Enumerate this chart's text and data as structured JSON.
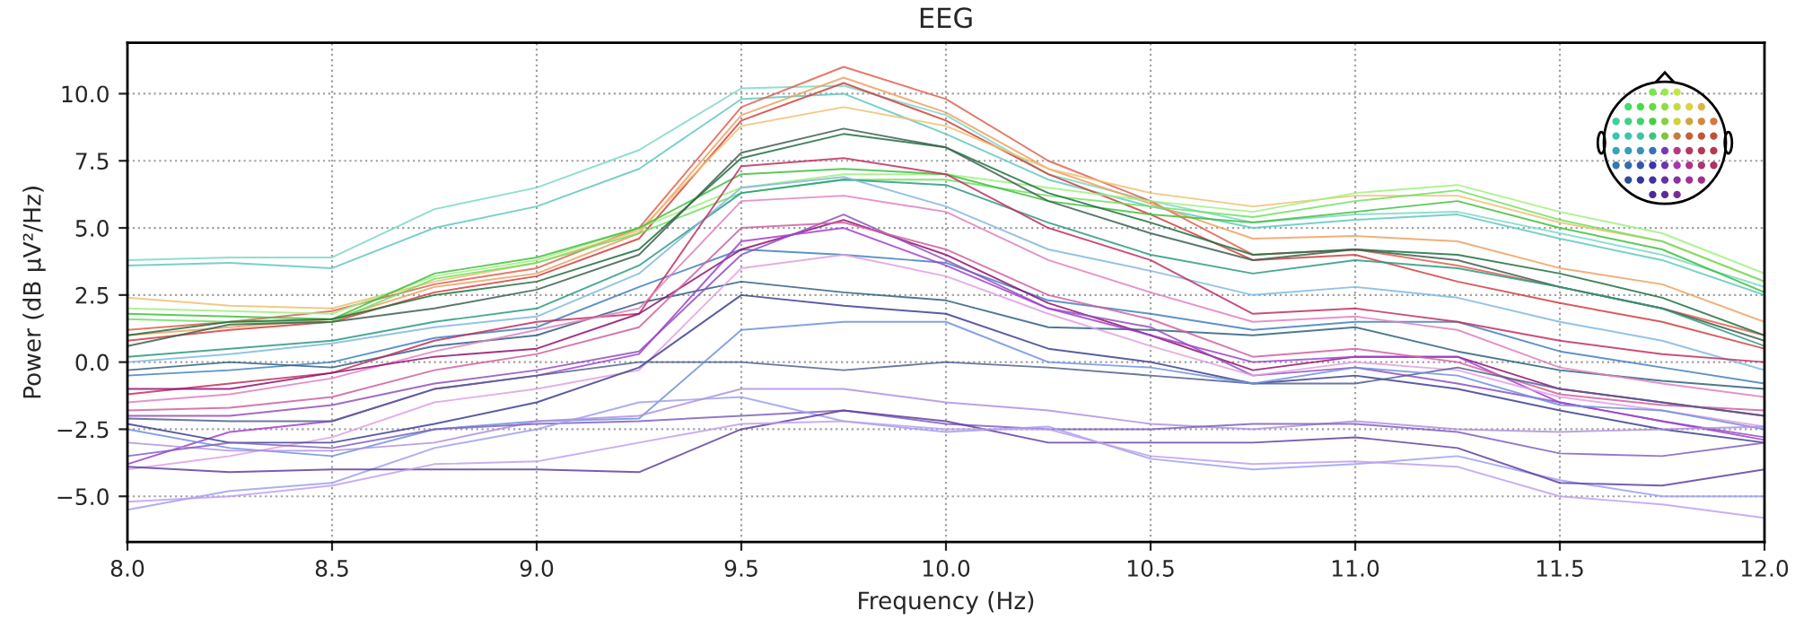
{
  "chart_data": {
    "type": "line",
    "title": "EEG",
    "xlabel": "Frequency (Hz)",
    "ylabel": "Power (dB µV²/Hz)",
    "x": [
      8.0,
      8.25,
      8.5,
      8.75,
      9.0,
      9.25,
      9.5,
      9.75,
      10.0,
      10.25,
      10.5,
      10.75,
      11.0,
      11.25,
      11.5,
      11.75,
      12.0
    ],
    "xlim": [
      8.0,
      12.0
    ],
    "ylim": [
      -6.7,
      11.9
    ],
    "xticks": [
      {
        "value": 8,
        "label": "8.0"
      },
      {
        "value": 8.5,
        "label": "8.5"
      },
      {
        "value": 9,
        "label": "9.0"
      },
      {
        "value": 9.5,
        "label": "9.5"
      },
      {
        "value": 10,
        "label": "10.0"
      },
      {
        "value": 10.5,
        "label": "10.5"
      },
      {
        "value": 11,
        "label": "11.0"
      },
      {
        "value": 11.5,
        "label": "11.5"
      },
      {
        "value": 12,
        "label": "12.0"
      }
    ],
    "yticks": [
      {
        "value": -5,
        "label": "−5.0"
      },
      {
        "value": -2.5,
        "label": "−2.5"
      },
      {
        "value": 0,
        "label": "0.0"
      },
      {
        "value": 2.5,
        "label": "2.5"
      },
      {
        "value": 5,
        "label": "5.0"
      },
      {
        "value": 7.5,
        "label": "7.5"
      },
      {
        "value": 10,
        "label": "10.0"
      }
    ],
    "grid": true,
    "marker": "none",
    "line_style": "solid",
    "series": [
      {
        "color": "#7dd8c8",
        "values": [
          3.8,
          3.9,
          3.9,
          5.7,
          6.5,
          7.9,
          10.2,
          10.3,
          9.2,
          7.0,
          6.0,
          5.2,
          5.5,
          5.6,
          4.8,
          4.0,
          2.8
        ]
      },
      {
        "color": "#60c8c0",
        "values": [
          3.6,
          3.7,
          3.5,
          5.0,
          5.8,
          7.2,
          9.8,
          10.0,
          8.5,
          6.8,
          5.8,
          5.0,
          5.3,
          5.5,
          4.6,
          3.8,
          2.5
        ]
      },
      {
        "color": "#e06050",
        "values": [
          1.2,
          1.5,
          1.9,
          2.9,
          3.5,
          5.0,
          9.5,
          11.0,
          9.8,
          7.5,
          6.0,
          4.0,
          4.2,
          3.6,
          2.8,
          2.0,
          1.0
        ]
      },
      {
        "color": "#d04040",
        "values": [
          0.8,
          1.2,
          1.5,
          2.6,
          3.2,
          4.6,
          9.0,
          10.4,
          9.0,
          7.0,
          5.5,
          3.8,
          4.0,
          3.0,
          2.2,
          1.5,
          0.5
        ]
      },
      {
        "color": "#f0a060",
        "values": [
          1.0,
          1.3,
          1.6,
          2.8,
          3.3,
          4.8,
          9.2,
          10.6,
          9.3,
          7.2,
          5.9,
          4.6,
          4.7,
          4.5,
          3.5,
          2.9,
          1.5
        ]
      },
      {
        "color": "#f0c070",
        "values": [
          2.4,
          2.1,
          2.0,
          3.0,
          3.7,
          4.9,
          8.8,
          9.5,
          8.8,
          7.2,
          6.3,
          5.8,
          6.2,
          6.2,
          5.2,
          4.5,
          3.0
        ]
      },
      {
        "color": "#a0f080",
        "values": [
          2.0,
          1.9,
          1.8,
          3.2,
          3.8,
          5.0,
          6.5,
          7.0,
          7.0,
          6.5,
          6.0,
          5.6,
          6.3,
          6.6,
          5.6,
          4.8,
          3.3
        ]
      },
      {
        "color": "#70e060",
        "values": [
          1.6,
          1.5,
          1.5,
          3.1,
          3.7,
          4.8,
          6.3,
          6.8,
          6.8,
          6.2,
          5.8,
          5.4,
          6.0,
          6.4,
          5.3,
          4.5,
          3.0
        ]
      },
      {
        "color": "#40c040",
        "values": [
          1.8,
          1.7,
          1.6,
          3.3,
          3.9,
          5.0,
          7.0,
          7.2,
          7.0,
          6.0,
          5.5,
          5.2,
          5.6,
          6.0,
          5.0,
          4.2,
          2.6
        ]
      },
      {
        "color": "#207040",
        "values": [
          1.0,
          1.5,
          1.6,
          2.5,
          3.0,
          4.2,
          7.6,
          8.5,
          8.0,
          6.3,
          5.2,
          4.0,
          4.2,
          4.0,
          3.3,
          2.4,
          1.0
        ]
      },
      {
        "color": "#406050",
        "values": [
          0.6,
          1.4,
          1.5,
          2.0,
          2.7,
          4.0,
          7.8,
          8.7,
          8.0,
          6.0,
          4.8,
          3.8,
          4.2,
          3.8,
          2.8,
          2.0,
          0.8
        ]
      },
      {
        "color": "#2a9a80",
        "values": [
          0.2,
          0.5,
          0.8,
          1.5,
          2.0,
          3.6,
          6.3,
          6.8,
          6.6,
          5.2,
          4.0,
          3.3,
          3.8,
          3.5,
          2.8,
          2.0,
          0.6
        ]
      },
      {
        "color": "#80b8e0",
        "values": [
          0.0,
          0.3,
          0.7,
          1.3,
          1.7,
          3.3,
          6.5,
          6.9,
          5.8,
          4.2,
          3.4,
          2.5,
          2.8,
          2.4,
          1.5,
          0.8,
          -0.3
        ]
      },
      {
        "color": "#4080c0",
        "values": [
          -0.5,
          -0.3,
          0.0,
          0.9,
          1.3,
          2.8,
          4.2,
          4.0,
          3.7,
          2.3,
          1.8,
          1.2,
          1.5,
          1.5,
          0.4,
          -0.2,
          -0.8
        ]
      },
      {
        "color": "#306080",
        "values": [
          -0.3,
          0.0,
          -0.2,
          0.6,
          1.0,
          2.2,
          3.0,
          2.6,
          2.3,
          1.3,
          1.2,
          1.0,
          1.3,
          0.4,
          -0.3,
          -0.7,
          -1.0
        ]
      },
      {
        "color": "#c03060",
        "values": [
          -1.2,
          -0.8,
          -0.4,
          0.8,
          1.5,
          1.8,
          7.3,
          7.6,
          7.0,
          5.0,
          3.8,
          1.8,
          2.0,
          1.5,
          0.8,
          0.3,
          0.0
        ]
      },
      {
        "color": "#e080c0",
        "values": [
          -1.5,
          -1.2,
          -0.6,
          0.4,
          1.2,
          2.0,
          6.0,
          6.2,
          5.6,
          3.8,
          2.6,
          1.5,
          1.7,
          1.2,
          -0.2,
          -0.8,
          -1.3
        ]
      },
      {
        "color": "#901070",
        "values": [
          -1.0,
          -1.0,
          -0.4,
          0.2,
          0.5,
          1.8,
          4.2,
          5.3,
          4.0,
          2.2,
          1.0,
          -0.3,
          0.2,
          0.2,
          -1.0,
          -1.5,
          -2.0
        ]
      },
      {
        "color": "#9050c0",
        "values": [
          -2.0,
          -2.0,
          -1.6,
          -0.8,
          -0.3,
          0.4,
          4.0,
          5.5,
          3.8,
          2.0,
          1.3,
          -0.5,
          -0.2,
          -0.8,
          -1.5,
          -2.2,
          -2.8
        ]
      },
      {
        "color": "#a040d0",
        "values": [
          -3.8,
          -2.6,
          -2.2,
          -1.0,
          -0.5,
          0.3,
          4.5,
          5.0,
          3.6,
          2.0,
          1.0,
          0.0,
          0.2,
          0.2,
          -1.5,
          -2.2,
          -2.9
        ]
      },
      {
        "color": "#e0a0e0",
        "values": [
          -4.0,
          -3.5,
          -2.8,
          -1.5,
          -1.0,
          -0.3,
          3.5,
          4.0,
          3.2,
          1.8,
          0.6,
          -0.5,
          0.0,
          -0.3,
          -1.3,
          -1.8,
          -2.4
        ]
      },
      {
        "color": "#d060a0",
        "values": [
          -1.8,
          -1.7,
          -1.3,
          -0.3,
          0.3,
          1.3,
          5.0,
          5.2,
          4.2,
          2.5,
          1.6,
          0.2,
          0.5,
          0.0,
          -1.2,
          -1.6,
          -1.8
        ]
      },
      {
        "color": "#404090",
        "values": [
          -2.3,
          -3.0,
          -3.0,
          -2.3,
          -1.5,
          -0.2,
          2.5,
          2.1,
          1.8,
          0.5,
          0.0,
          -0.8,
          -0.5,
          -1.0,
          -1.8,
          -2.5,
          -3.0
        ]
      },
      {
        "color": "#506090",
        "values": [
          -2.1,
          -2.2,
          -2.2,
          -1.0,
          -0.5,
          0.0,
          0.0,
          -0.3,
          0.0,
          -0.2,
          -0.5,
          -0.8,
          -0.8,
          -0.2,
          -1.0,
          -1.5,
          -2.0
        ]
      },
      {
        "color": "#7090e0",
        "values": [
          -2.5,
          -3.2,
          -3.5,
          -2.5,
          -2.2,
          -2.1,
          1.2,
          1.5,
          1.5,
          0.0,
          -0.2,
          -0.8,
          -0.2,
          -0.5,
          -1.6,
          -1.8,
          -2.5
        ]
      },
      {
        "color": "#b090e0",
        "values": [
          -3.0,
          -3.3,
          -3.3,
          -3.0,
          -2.2,
          -2.0,
          -1.0,
          -1.0,
          -1.5,
          -1.8,
          -2.3,
          -2.5,
          -2.2,
          -2.5,
          -2.6,
          -2.5,
          -2.4
        ]
      },
      {
        "color": "#8060c0",
        "values": [
          -3.5,
          -3.0,
          -3.2,
          -2.5,
          -2.3,
          -2.2,
          -2.0,
          -1.8,
          -2.3,
          -2.5,
          -2.5,
          -2.3,
          -2.3,
          -2.6,
          -3.4,
          -3.5,
          -3.0
        ]
      },
      {
        "color": "#a0a0f0",
        "values": [
          -5.5,
          -4.8,
          -4.5,
          -3.2,
          -2.5,
          -1.5,
          -1.3,
          -2.2,
          -2.6,
          -2.4,
          -3.6,
          -4.0,
          -3.8,
          -3.5,
          -4.4,
          -5.0,
          -5.0
        ]
      },
      {
        "color": "#6040a0",
        "values": [
          -3.9,
          -4.1,
          -4.0,
          -4.0,
          -4.0,
          -4.1,
          -2.5,
          -1.8,
          -2.2,
          -3.0,
          -3.0,
          -3.0,
          -2.8,
          -3.2,
          -4.5,
          -4.6,
          -4.0
        ]
      },
      {
        "color": "#c0a0f0",
        "values": [
          -5.2,
          -5.0,
          -4.6,
          -3.8,
          -3.7,
          -3.0,
          -2.3,
          -2.2,
          -2.5,
          -2.5,
          -3.5,
          -3.8,
          -3.7,
          -3.9,
          -5.0,
          -5.3,
          -5.8
        ]
      }
    ]
  }
}
